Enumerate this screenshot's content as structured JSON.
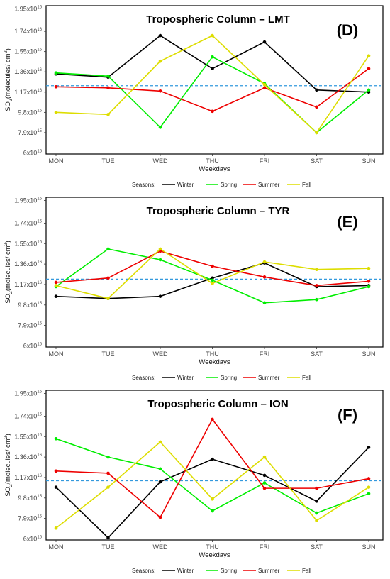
{
  "legend": {
    "title": "Seasons:",
    "entries": [
      {
        "name": "Winter",
        "color": "#000000"
      },
      {
        "name": "Spring",
        "color": "#00ee00"
      },
      {
        "name": "Summer",
        "color": "#ee0000"
      },
      {
        "name": "Fall",
        "color": "#dddd00"
      }
    ]
  },
  "reference_line_color": "#3399dd",
  "chart_data": [
    {
      "type": "line",
      "title": "Tropospheric Column – LMT",
      "panel_label": "(D)",
      "xlabel": "Weekdays",
      "ylabel_main": "SO",
      "ylabel_sub": "2",
      "ylabel_rest": "(molecules/ cm",
      "ylabel_sup": "2",
      "ylabel_close": ")",
      "categories": [
        "MON",
        "TUE",
        "WED",
        "THU",
        "FRI",
        "SAT",
        "SUN"
      ],
      "ylim": [
        5900000000000000.0,
        1.98e+16
      ],
      "yticks": [
        {
          "value": 6000000000000000.0,
          "mantissa": "6x10",
          "exp": "15"
        },
        {
          "value": 7900000000000000.0,
          "mantissa": "7.9x10",
          "exp": "15"
        },
        {
          "value": 9800000000000000.0,
          "mantissa": "9.8x10",
          "exp": "15"
        },
        {
          "value": 1.17e+16,
          "mantissa": "1.17x10",
          "exp": "16"
        },
        {
          "value": 1.36e+16,
          "mantissa": "1.36x10",
          "exp": "16"
        },
        {
          "value": 1.55e+16,
          "mantissa": "1.55x10",
          "exp": "16"
        },
        {
          "value": 1.74e+16,
          "mantissa": "1.74x10",
          "exp": "16"
        },
        {
          "value": 1.95e+16,
          "mantissa": "1.95x10",
          "exp": "16"
        }
      ],
      "reference_line": 1.23e+16,
      "series": [
        {
          "name": "Winter",
          "values": [
            1.34e+16,
            1.31e+16,
            1.7e+16,
            1.39e+16,
            1.64e+16,
            1.19e+16,
            1.17e+16
          ]
        },
        {
          "name": "Spring",
          "values": [
            1.35e+16,
            1.32e+16,
            8400000000000000.0,
            1.5e+16,
            1.25e+16,
            7900000000000000.0,
            1.19e+16
          ]
        },
        {
          "name": "Summer",
          "values": [
            1.22e+16,
            1.21e+16,
            1.18e+16,
            9900000000000000.0,
            1.21e+16,
            1.03e+16,
            1.39e+16
          ]
        },
        {
          "name": "Fall",
          "values": [
            9800000000000000.0,
            9600000000000000.0,
            1.46e+16,
            1.7e+16,
            1.24e+16,
            7900000000000000.0,
            1.51e+16
          ]
        }
      ]
    },
    {
      "type": "line",
      "title": "Tropospheric Column – TYR",
      "panel_label": "(E)",
      "xlabel": "Weekdays",
      "ylabel_main": "SO",
      "ylabel_sub": "2",
      "ylabel_rest": "(molecules/ cm",
      "ylabel_sup": "2",
      "ylabel_close": ")",
      "categories": [
        "MON",
        "TUE",
        "WED",
        "THU",
        "FRI",
        "SAT",
        "SUN"
      ],
      "ylim": [
        5900000000000000.0,
        1.98e+16
      ],
      "yticks": [
        {
          "value": 6000000000000000.0,
          "mantissa": "6x10",
          "exp": "15"
        },
        {
          "value": 7900000000000000.0,
          "mantissa": "7.9x10",
          "exp": "15"
        },
        {
          "value": 9800000000000000.0,
          "mantissa": "9.8x10",
          "exp": "15"
        },
        {
          "value": 1.17e+16,
          "mantissa": "1.17x10",
          "exp": "16"
        },
        {
          "value": 1.36e+16,
          "mantissa": "1.36x10",
          "exp": "16"
        },
        {
          "value": 1.55e+16,
          "mantissa": "1.55x10",
          "exp": "16"
        },
        {
          "value": 1.74e+16,
          "mantissa": "1.74x10",
          "exp": "16"
        },
        {
          "value": 1.95e+16,
          "mantissa": "1.95x10",
          "exp": "16"
        }
      ],
      "reference_line": 1.22e+16,
      "series": [
        {
          "name": "Winter",
          "values": [
            1.06e+16,
            1.04e+16,
            1.06e+16,
            1.23e+16,
            1.37e+16,
            1.15e+16,
            1.16e+16
          ]
        },
        {
          "name": "Spring",
          "values": [
            1.15e+16,
            1.5e+16,
            1.4e+16,
            1.21e+16,
            1e+16,
            1.03e+16,
            1.15e+16
          ]
        },
        {
          "name": "Summer",
          "values": [
            1.19e+16,
            1.23e+16,
            1.48e+16,
            1.34e+16,
            1.24e+16,
            1.16e+16,
            1.2e+16
          ]
        },
        {
          "name": "Fall",
          "values": [
            1.16e+16,
            1.04e+16,
            1.5e+16,
            1.18e+16,
            1.38e+16,
            1.31e+16,
            1.32e+16
          ]
        }
      ]
    },
    {
      "type": "line",
      "title": "Tropospheric Column – ION",
      "panel_label": "(F)",
      "xlabel": "Weekdays",
      "ylabel_main": "SO",
      "ylabel_sub": "2",
      "ylabel_rest": "(molecules/ cm",
      "ylabel_sup": "2",
      "ylabel_close": ")",
      "categories": [
        "MON",
        "TUE",
        "WED",
        "THU",
        "FRI",
        "SAT",
        "SUN"
      ],
      "ylim": [
        5900000000000000.0,
        1.98e+16
      ],
      "yticks": [
        {
          "value": 6000000000000000.0,
          "mantissa": "6x10",
          "exp": "15"
        },
        {
          "value": 7900000000000000.0,
          "mantissa": "7.9x10",
          "exp": "15"
        },
        {
          "value": 9800000000000000.0,
          "mantissa": "9.8x10",
          "exp": "15"
        },
        {
          "value": 1.17e+16,
          "mantissa": "1.17x10",
          "exp": "16"
        },
        {
          "value": 1.36e+16,
          "mantissa": "1.36x10",
          "exp": "16"
        },
        {
          "value": 1.55e+16,
          "mantissa": "1.55x10",
          "exp": "16"
        },
        {
          "value": 1.74e+16,
          "mantissa": "1.74x10",
          "exp": "16"
        },
        {
          "value": 1.95e+16,
          "mantissa": "1.95x10",
          "exp": "16"
        }
      ],
      "reference_line": 1.14e+16,
      "series": [
        {
          "name": "Winter",
          "values": [
            1.08e+16,
            6100000000000000.0,
            1.13e+16,
            1.34e+16,
            1.19e+16,
            9500000000000000.0,
            1.45e+16
          ]
        },
        {
          "name": "Spring",
          "values": [
            1.53e+16,
            1.36e+16,
            1.25e+16,
            8600000000000000.0,
            1.12e+16,
            8400000000000000.0,
            1.02e+16
          ]
        },
        {
          "name": "Summer",
          "values": [
            1.23e+16,
            1.21e+16,
            8000000000000000.0,
            1.71e+16,
            1.07e+16,
            1.07e+16,
            1.16e+16
          ]
        },
        {
          "name": "Fall",
          "values": [
            7000000000000000.0,
            1.08e+16,
            1.5e+16,
            9700000000000000.0,
            1.36e+16,
            7700000000000000.0,
            1.08e+16
          ]
        }
      ]
    }
  ]
}
